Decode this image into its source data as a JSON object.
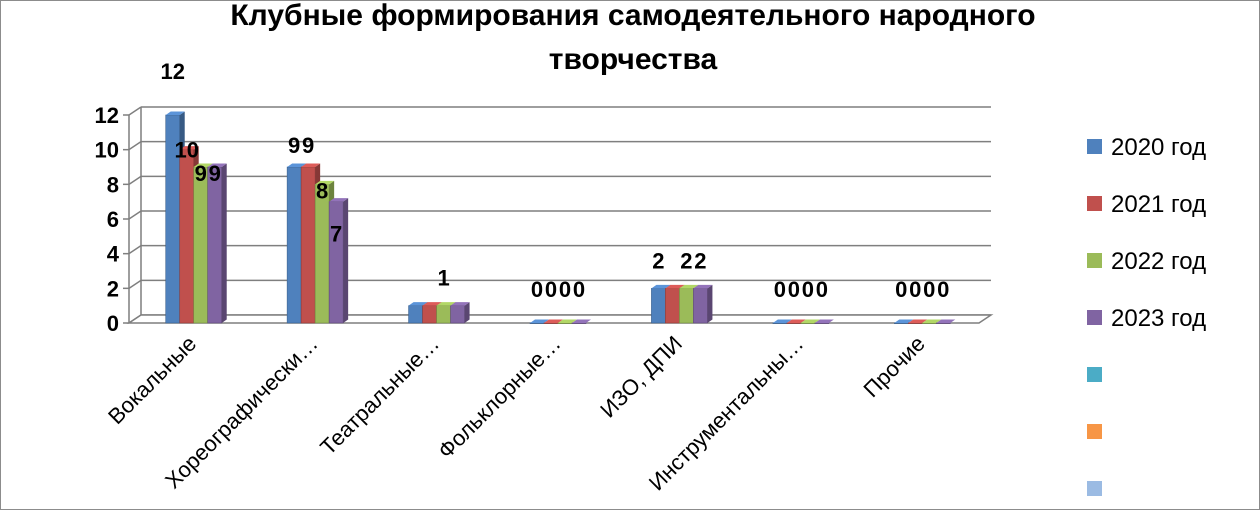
{
  "chart_data": {
    "type": "bar",
    "title_lines": [
      "Клубные формирования самодеятельного народного",
      "творчества"
    ],
    "categories": [
      "Вокальные",
      "Хореографически…",
      "Театральные…",
      "Фольклорные…",
      "ИЗО, ДПИ",
      "Инструментальны…",
      "Прочие"
    ],
    "series": [
      {
        "name": "2020 год",
        "values": [
          12,
          9,
          1,
          0,
          2,
          0,
          0
        ],
        "labels": [
          "12",
          "9",
          "",
          "0",
          "2",
          "0",
          "0"
        ]
      },
      {
        "name": "2021 год",
        "values": [
          10,
          9,
          1,
          0,
          2,
          0,
          0
        ],
        "labels": [
          "10",
          "9",
          "",
          "0",
          "",
          "0",
          "0"
        ]
      },
      {
        "name": "2022 год",
        "values": [
          9,
          8,
          1,
          0,
          2,
          0,
          0
        ],
        "labels": [
          "9",
          "8",
          "1",
          "0",
          "2",
          "0",
          "0"
        ]
      },
      {
        "name": "2023 год",
        "values": [
          9,
          7,
          1,
          0,
          2,
          0,
          0
        ],
        "labels": [
          "9",
          "7",
          "",
          "0",
          "2",
          "0",
          "0"
        ]
      }
    ],
    "extra_legend_entries": [
      {
        "name": "",
        "color": "#4bacc6"
      },
      {
        "name": "",
        "color": "#f79646"
      },
      {
        "name": "",
        "color": "#9bbbe3"
      }
    ],
    "yticks": [
      "0",
      "2",
      "4",
      "6",
      "8",
      "10",
      "12"
    ],
    "ylim": [
      0,
      12
    ],
    "xlabel": "",
    "ylabel": "",
    "grid": true,
    "legend_position": "right",
    "colors": [
      "#4f81bd",
      "#c0504d",
      "#9bbb59",
      "#8064a2"
    ]
  }
}
